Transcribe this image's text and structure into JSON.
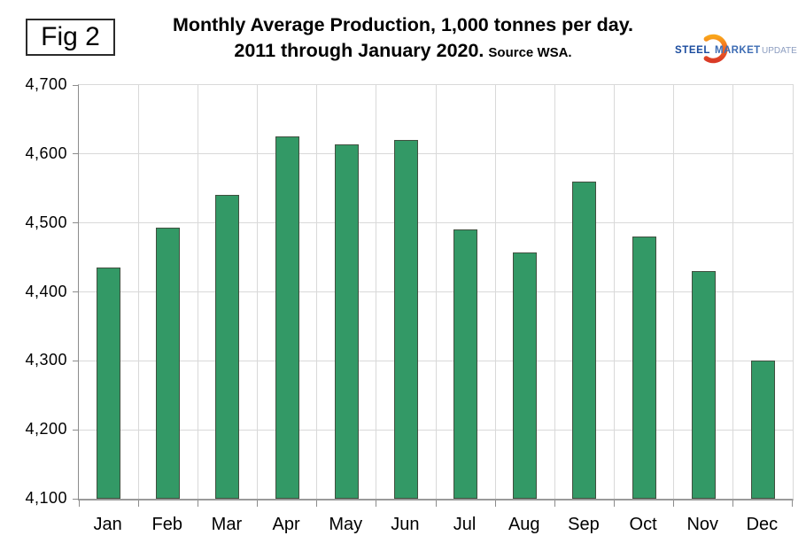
{
  "figure_label": "Fig 2",
  "title": {
    "line1": "Monthly Average Production, 1,000 tonnes per day.",
    "line2": "2011 through January 2020.",
    "source": "Source WSA."
  },
  "logo": {
    "word1": "STEEL",
    "word2": "MARKET",
    "word3": "UPDATE",
    "word1_color": "#1a4b9e",
    "word2_color": "#3d6cb4",
    "word3_color": "#8c9dc0",
    "swoosh_top_color": "#f9a51a",
    "swoosh_mid_color": "#f26522",
    "swoosh_bottom_color": "#d93a26"
  },
  "chart_data": {
    "type": "bar",
    "title": "Monthly Average Production, 1,000 tonnes per day. 2011 through January 2020.",
    "source": "Source WSA.",
    "categories": [
      "Jan",
      "Feb",
      "Mar",
      "Apr",
      "May",
      "Jun",
      "Jul",
      "Aug",
      "Sep",
      "Oct",
      "Nov",
      "Dec"
    ],
    "values": [
      4435,
      4493,
      4541,
      4626,
      4614,
      4620,
      4490,
      4457,
      4560,
      4480,
      4430,
      4300
    ],
    "xlabel": "",
    "ylabel": "",
    "ylim": [
      4100,
      4700
    ],
    "ytick_step": 100,
    "ytick_labels": [
      "4,100",
      "4,200",
      "4,300",
      "4,400",
      "4,500",
      "4,600",
      "4,700"
    ],
    "grid": true,
    "legend": "none",
    "bar_color": "#339966",
    "bar_border_color": "#40503f",
    "gridline_color": "#d9d9d9",
    "axis_color": "#8c8c8c"
  }
}
